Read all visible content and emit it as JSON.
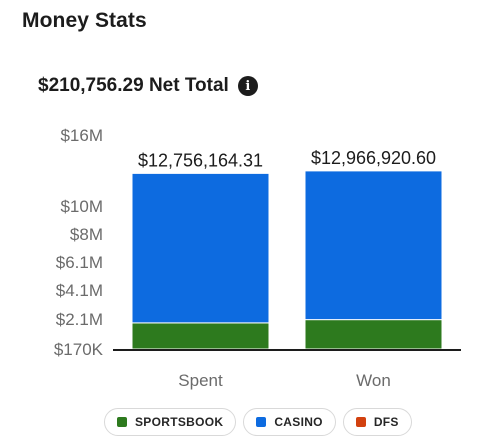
{
  "header": {
    "title": "Money Stats"
  },
  "summary": {
    "net_total": "$210,756.29 Net Total",
    "info_icon": "info-icon"
  },
  "colors": {
    "sportsbook": "#2d7a1e",
    "casino": "#0d6be0",
    "dfs": "#d2410f",
    "axis": "#1c1c1c",
    "text": "#1c1c1c",
    "muted": "#6b6b6b"
  },
  "legend": [
    {
      "label": "SPORTSBOOK",
      "color": "#2d7a1e"
    },
    {
      "label": "CASINO",
      "color": "#0d6be0"
    },
    {
      "label": "DFS",
      "color": "#d2410f"
    }
  ],
  "chart_data": {
    "type": "bar",
    "stacked": true,
    "categories": [
      "Spent",
      "Won"
    ],
    "series": [
      {
        "name": "SPORTSBOOK",
        "values": [
          1850000,
          2060000
        ]
      },
      {
        "name": "CASINO",
        "values": [
          10906164.31,
          10906920.6
        ]
      },
      {
        "name": "DFS",
        "values": [
          0,
          0
        ]
      }
    ],
    "totals_labels": [
      "$12,756,164.31",
      "$12,966,920.60"
    ],
    "y_ticks": [
      {
        "label": "$16M",
        "value": 16000000
      },
      {
        "label": "$10M",
        "value": 10000000
      },
      {
        "label": "$8M",
        "value": 8000000
      },
      {
        "label": "$6.1M",
        "value": 6100000
      },
      {
        "label": "$4.1M",
        "value": 4100000
      },
      {
        "label": "$2.1M",
        "value": 2100000
      },
      {
        "label": "$170K",
        "value": 170000
      }
    ],
    "ylim": [
      170000,
      16000000
    ],
    "grid": false,
    "legend_position": "bottom"
  }
}
